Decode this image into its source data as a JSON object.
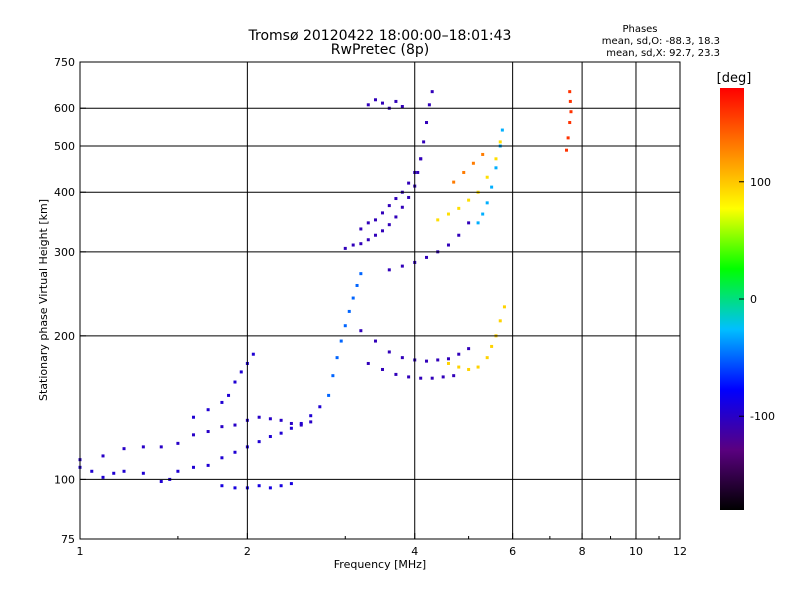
{
  "chart_data": {
    "type": "scatter",
    "title": "Tromsø 20120422 18:00:00–18:01:43",
    "subtitle": "RwPretec (8p)",
    "xlabel": "Frequency [MHz]",
    "ylabel": "Stationary phase Virtual Height [km]",
    "x_scale": "log",
    "y_scale": "log",
    "xlim": [
      1,
      12
    ],
    "ylim": [
      75,
      750
    ],
    "x_ticks": [
      1,
      2,
      4,
      6,
      8,
      10,
      12
    ],
    "x_tick_labels": [
      "1",
      "2",
      "4",
      "6",
      "8",
      "10",
      "12"
    ],
    "x_grid": [
      2,
      4,
      6,
      8,
      10
    ],
    "y_ticks": [
      75,
      100,
      200,
      300,
      400,
      500,
      600,
      750
    ],
    "y_tick_labels": [
      "75",
      "100",
      "200",
      "300",
      "400",
      "500",
      "600",
      "750"
    ],
    "y_grid": [
      100,
      200,
      300,
      400,
      500,
      600
    ],
    "grid": true,
    "phases": {
      "title": "Phases",
      "line_o": "mean, sd,O: -88.3, 18.3",
      "line_x": "mean, sd,X: 92.7, 23.3"
    },
    "colorbar": {
      "label": "[deg]",
      "range": [
        -180,
        180
      ],
      "ticks": [
        -100,
        0,
        100
      ],
      "tick_labels": [
        "-100",
        "0",
        "100"
      ],
      "colormap": [
        "#000000",
        "#5a0080",
        "#0000ff",
        "#00bfff",
        "#00ff00",
        "#ffff00",
        "#ff8000",
        "#ff0000"
      ]
    },
    "traces": [
      {
        "name": "",
        "phase": -95,
        "points": [
          [
            1.0,
            106
          ],
          [
            1.05,
            104
          ],
          [
            1.1,
            101
          ],
          [
            1.15,
            103
          ],
          [
            1.2,
            104
          ],
          [
            1.3,
            103
          ],
          [
            1.4,
            99
          ],
          [
            1.45,
            100
          ],
          [
            1.5,
            104
          ],
          [
            1.6,
            106
          ],
          [
            1.7,
            107
          ],
          [
            1.8,
            111
          ],
          [
            1.9,
            114
          ],
          [
            2.0,
            117
          ],
          [
            2.1,
            120
          ],
          [
            2.2,
            123
          ],
          [
            2.3,
            125
          ],
          [
            2.4,
            128
          ],
          [
            2.5,
            131
          ],
          [
            2.6,
            136
          ],
          [
            2.7,
            142
          ]
        ]
      },
      {
        "name": "",
        "phase": -100,
        "points": [
          [
            1.0,
            110
          ],
          [
            1.1,
            112
          ],
          [
            1.2,
            116
          ],
          [
            1.3,
            117
          ],
          [
            1.4,
            117
          ],
          [
            1.5,
            119
          ],
          [
            1.6,
            124
          ],
          [
            1.7,
            126
          ],
          [
            1.8,
            129
          ],
          [
            1.9,
            130
          ],
          [
            2.0,
            133
          ],
          [
            2.1,
            135
          ],
          [
            2.2,
            134
          ],
          [
            2.3,
            133
          ],
          [
            2.4,
            131
          ],
          [
            2.5,
            130
          ],
          [
            2.6,
            132
          ]
        ]
      },
      {
        "name": "",
        "phase": -95,
        "points": [
          [
            1.6,
            135
          ],
          [
            1.7,
            140
          ],
          [
            1.8,
            145
          ],
          [
            1.85,
            150
          ],
          [
            1.9,
            160
          ],
          [
            1.95,
            168
          ],
          [
            2.0,
            175
          ],
          [
            2.05,
            183
          ]
        ]
      },
      {
        "name": "",
        "phase": -90,
        "points": [
          [
            1.8,
            97
          ],
          [
            1.9,
            96
          ],
          [
            2.0,
            96
          ],
          [
            2.1,
            97
          ],
          [
            2.2,
            96
          ],
          [
            2.3,
            97
          ],
          [
            2.4,
            98
          ]
        ]
      },
      {
        "name": "",
        "phase": -50,
        "points": [
          [
            2.8,
            150
          ],
          [
            2.85,
            165
          ],
          [
            2.9,
            180
          ],
          [
            2.95,
            195
          ],
          [
            3.0,
            210
          ],
          [
            3.05,
            225
          ],
          [
            3.1,
            240
          ],
          [
            3.15,
            255
          ],
          [
            3.2,
            270
          ]
        ]
      },
      {
        "name": "",
        "phase": -105,
        "points": [
          [
            3.0,
            305
          ],
          [
            3.1,
            310
          ],
          [
            3.2,
            312
          ],
          [
            3.3,
            318
          ],
          [
            3.4,
            325
          ],
          [
            3.5,
            332
          ],
          [
            3.6,
            342
          ],
          [
            3.7,
            355
          ],
          [
            3.8,
            372
          ],
          [
            3.9,
            390
          ],
          [
            4.0,
            412
          ],
          [
            4.05,
            440
          ],
          [
            4.1,
            470
          ],
          [
            4.15,
            510
          ],
          [
            4.2,
            560
          ],
          [
            4.25,
            610
          ],
          [
            4.3,
            650
          ]
        ]
      },
      {
        "name": "",
        "phase": -105,
        "points": [
          [
            3.2,
            335
          ],
          [
            3.3,
            345
          ],
          [
            3.4,
            350
          ],
          [
            3.5,
            362
          ],
          [
            3.6,
            375
          ],
          [
            3.7,
            388
          ],
          [
            3.8,
            400
          ],
          [
            3.9,
            418
          ],
          [
            4.0,
            440
          ],
          [
            4.1,
            470
          ]
        ]
      },
      {
        "name": "",
        "phase": -105,
        "points": [
          [
            3.3,
            610
          ],
          [
            3.4,
            625
          ],
          [
            3.5,
            615
          ],
          [
            3.6,
            600
          ],
          [
            3.7,
            620
          ],
          [
            3.8,
            605
          ]
        ]
      },
      {
        "name": "",
        "phase": -105,
        "points": [
          [
            3.6,
            275
          ],
          [
            3.8,
            280
          ],
          [
            4.0,
            285
          ],
          [
            4.2,
            292
          ],
          [
            4.4,
            300
          ],
          [
            4.6,
            310
          ],
          [
            4.8,
            325
          ],
          [
            5.0,
            345
          ]
        ]
      },
      {
        "name": "",
        "phase": -105,
        "points": [
          [
            3.2,
            205
          ],
          [
            3.4,
            195
          ],
          [
            3.6,
            185
          ],
          [
            3.8,
            180
          ],
          [
            4.0,
            178
          ],
          [
            4.2,
            177
          ],
          [
            4.4,
            178
          ],
          [
            4.6,
            179
          ],
          [
            4.8,
            183
          ],
          [
            5.0,
            188
          ]
        ]
      },
      {
        "name": "",
        "phase": -105,
        "points": [
          [
            3.3,
            175
          ],
          [
            3.5,
            170
          ],
          [
            3.7,
            166
          ],
          [
            3.9,
            164
          ],
          [
            4.1,
            163
          ],
          [
            4.3,
            163
          ],
          [
            4.5,
            164
          ],
          [
            4.7,
            165
          ]
        ]
      },
      {
        "name": "",
        "phase": -30,
        "points": [
          [
            5.2,
            345
          ],
          [
            5.3,
            360
          ],
          [
            5.4,
            380
          ],
          [
            5.5,
            410
          ],
          [
            5.6,
            450
          ],
          [
            5.7,
            500
          ],
          [
            5.75,
            540
          ]
        ]
      },
      {
        "name": "",
        "phase": 95,
        "points": [
          [
            4.6,
            175
          ],
          [
            4.8,
            172
          ],
          [
            5.0,
            170
          ],
          [
            5.2,
            172
          ],
          [
            5.4,
            180
          ],
          [
            5.5,
            190
          ],
          [
            5.6,
            200
          ],
          [
            5.7,
            215
          ],
          [
            5.8,
            230
          ]
        ]
      },
      {
        "name": "",
        "phase": 90,
        "points": [
          [
            4.4,
            350
          ],
          [
            4.6,
            360
          ],
          [
            4.8,
            370
          ],
          [
            5.0,
            385
          ],
          [
            5.2,
            400
          ],
          [
            5.4,
            430
          ],
          [
            5.6,
            470
          ],
          [
            5.7,
            510
          ]
        ]
      },
      {
        "name": "",
        "phase": 130,
        "points": [
          [
            4.7,
            420
          ],
          [
            4.9,
            440
          ],
          [
            5.1,
            460
          ],
          [
            5.3,
            480
          ]
        ]
      },
      {
        "name": "",
        "phase": 160,
        "points": [
          [
            7.6,
            650
          ],
          [
            7.62,
            620
          ],
          [
            7.64,
            590
          ],
          [
            7.6,
            560
          ],
          [
            7.55,
            520
          ],
          [
            7.5,
            490
          ]
        ]
      }
    ]
  }
}
